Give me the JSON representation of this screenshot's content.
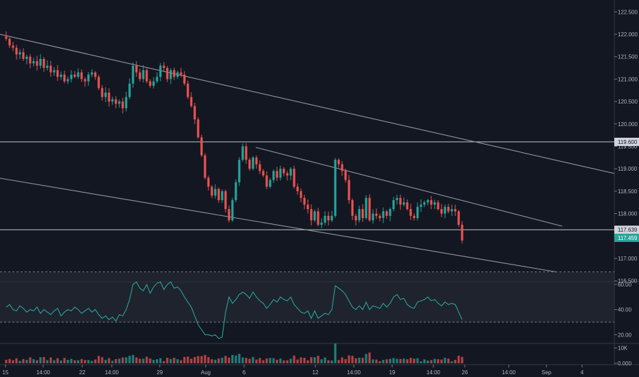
{
  "colors": {
    "background": "#131722",
    "up": "#26a69a",
    "down": "#ef5350",
    "trendline": "#9598a1",
    "hline": "#b2b5be",
    "rsi_line": "#26a69a",
    "rsi_band": "#2a2e39"
  },
  "chart_data": [
    {
      "type": "candlestick",
      "x_tick_labels": [
        "15",
        "14:00",
        "22",
        "14:00",
        "29",
        "Aug",
        "6",
        "12",
        "14:00",
        "19",
        "14:00",
        "26",
        "14:00",
        "Sep",
        "4"
      ],
      "y_tick_labels": [
        "116.500",
        "117.000",
        "117.500",
        "118.000",
        "118.500",
        "119.000",
        "119.500",
        "120.000",
        "120.500",
        "121.000",
        "121.500",
        "122.000",
        "122.500"
      ],
      "ylim": [
        116.5,
        122.75
      ],
      "horizontal_lines": [
        {
          "value": 119.6,
          "label": "119.600"
        },
        {
          "value": 117.639,
          "label": "117.639"
        }
      ],
      "last_price": {
        "value": 117.459,
        "label": "117.459"
      },
      "trendlines": [
        {
          "from": {
            "x": "Jul 15",
            "y": 122.25
          },
          "to": {
            "x": "Sep 5",
            "y": 119.0
          }
        },
        {
          "from": {
            "x": "Jul 15",
            "y": 118.9
          },
          "to": {
            "x": "Sep 1",
            "y": 116.7
          }
        },
        {
          "from": {
            "x": "Aug 6",
            "y": 119.55
          },
          "to": {
            "x": "Aug 31",
            "y": 117.75
          }
        }
      ],
      "closes": [
        121.9,
        121.75,
        121.7,
        121.55,
        121.6,
        121.45,
        121.5,
        121.35,
        121.4,
        121.3,
        121.45,
        121.25,
        121.3,
        121.15,
        121.2,
        121.05,
        121.1,
        120.95,
        121.0,
        121.1,
        121.05,
        121.15,
        121.0,
        120.95,
        121.1,
        121.15,
        121.05,
        120.8,
        120.6,
        120.7,
        120.5,
        120.55,
        120.45,
        120.5,
        120.35,
        120.6,
        120.9,
        121.3,
        121.15,
        121.0,
        121.2,
        120.95,
        120.85,
        120.95,
        121.05,
        121.3,
        121.25,
        121.0,
        121.2,
        121.05,
        121.15,
        121.1,
        120.9,
        120.6,
        120.4,
        120.1,
        119.7,
        119.3,
        118.8,
        118.6,
        118.4,
        118.55,
        118.3,
        118.5,
        118.1,
        117.85,
        118.3,
        118.7,
        119.2,
        119.5,
        119.2,
        119.0,
        119.25,
        119.1,
        118.95,
        118.85,
        118.6,
        118.75,
        118.95,
        118.8,
        119.0,
        118.9,
        118.85,
        119.0,
        118.6,
        118.5,
        118.35,
        118.2,
        118.1,
        117.85,
        118.05,
        117.75,
        117.8,
        117.95,
        117.85,
        117.95,
        119.2,
        119.1,
        118.95,
        118.75,
        118.3,
        117.95,
        117.85,
        118.1,
        117.9,
        118.35,
        117.85,
        118.0,
        117.95,
        117.9,
        118.05,
        117.95,
        118.1,
        118.3,
        118.35,
        118.2,
        118.25,
        118.1,
        117.95,
        117.9,
        118.15,
        118.2,
        118.25,
        118.3,
        118.2,
        118.25,
        118.1,
        118.0,
        118.15,
        118.05,
        118.1,
        118.05,
        117.75,
        117.4
      ],
      "rsi": {
        "ylim": [
          0,
          70
        ],
        "y_tick_labels": [
          "20.00",
          "40.00",
          "60.00"
        ],
        "band": [
          30,
          70
        ],
        "values": [
          42,
          44,
          40,
          39,
          43,
          41,
          38,
          40,
          39,
          42,
          37,
          40,
          38,
          36,
          39,
          41,
          35,
          38,
          40,
          39,
          42,
          40,
          37,
          39,
          41,
          38,
          40,
          36,
          33,
          35,
          32,
          34,
          31,
          36,
          35,
          40,
          48,
          60,
          62,
          57,
          55,
          60,
          53,
          58,
          61,
          62,
          56,
          60,
          62,
          57,
          58,
          55,
          50,
          46,
          42,
          35,
          28,
          24,
          20,
          20,
          19,
          20,
          17,
          18,
          38,
          50,
          45,
          48,
          52,
          54,
          52,
          49,
          54,
          50,
          47,
          45,
          41,
          44,
          48,
          46,
          50,
          48,
          47,
          50,
          44,
          41,
          38,
          37,
          39,
          33,
          39,
          33,
          35,
          37,
          36,
          40,
          59,
          57,
          55,
          52,
          47,
          42,
          40,
          43,
          40,
          46,
          40,
          43,
          42,
          41,
          45,
          42,
          45,
          50,
          52,
          48,
          49,
          44,
          42,
          41,
          46,
          47,
          48,
          50,
          47,
          48,
          45,
          43,
          46,
          44,
          45,
          44,
          38,
          32
        ]
      },
      "volume": {
        "y_tick_labels": [
          "0.000",
          "10K"
        ],
        "max": 13000
      }
    }
  ]
}
